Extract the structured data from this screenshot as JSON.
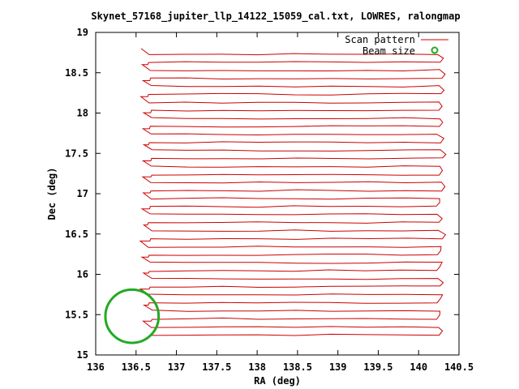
{
  "chart_data": {
    "type": "line",
    "title": "Skynet_57168_jupiter_llp_14122_15059_cal.txt, LOWRES, ralongmap",
    "xlabel": "RA (deg)",
    "ylabel": "Dec (deg)",
    "xlim": [
      136,
      140.5
    ],
    "ylim": [
      15,
      19
    ],
    "xticks": [
      "136",
      "136.5",
      "137",
      "137.5",
      "138",
      "138.5",
      "139",
      "139.5",
      "140",
      "140.5"
    ],
    "yticks": [
      "15",
      "15.5",
      "16",
      "16.5",
      "17",
      "17.5",
      "18",
      "18.5",
      "19"
    ],
    "grid": false,
    "legend_position": "top-right",
    "series": [
      {
        "name": "Scan pattern",
        "color": "#cc0000",
        "scan_rows": {
          "dec_start": 15.25,
          "dec_end": 18.73,
          "count": 36,
          "ra_min": 136.6,
          "ra_max": 140.3
        }
      },
      {
        "name": "Beam size",
        "color": "#22aa22",
        "center": [
          136.45,
          15.48
        ],
        "radius_deg": 0.33
      }
    ]
  }
}
